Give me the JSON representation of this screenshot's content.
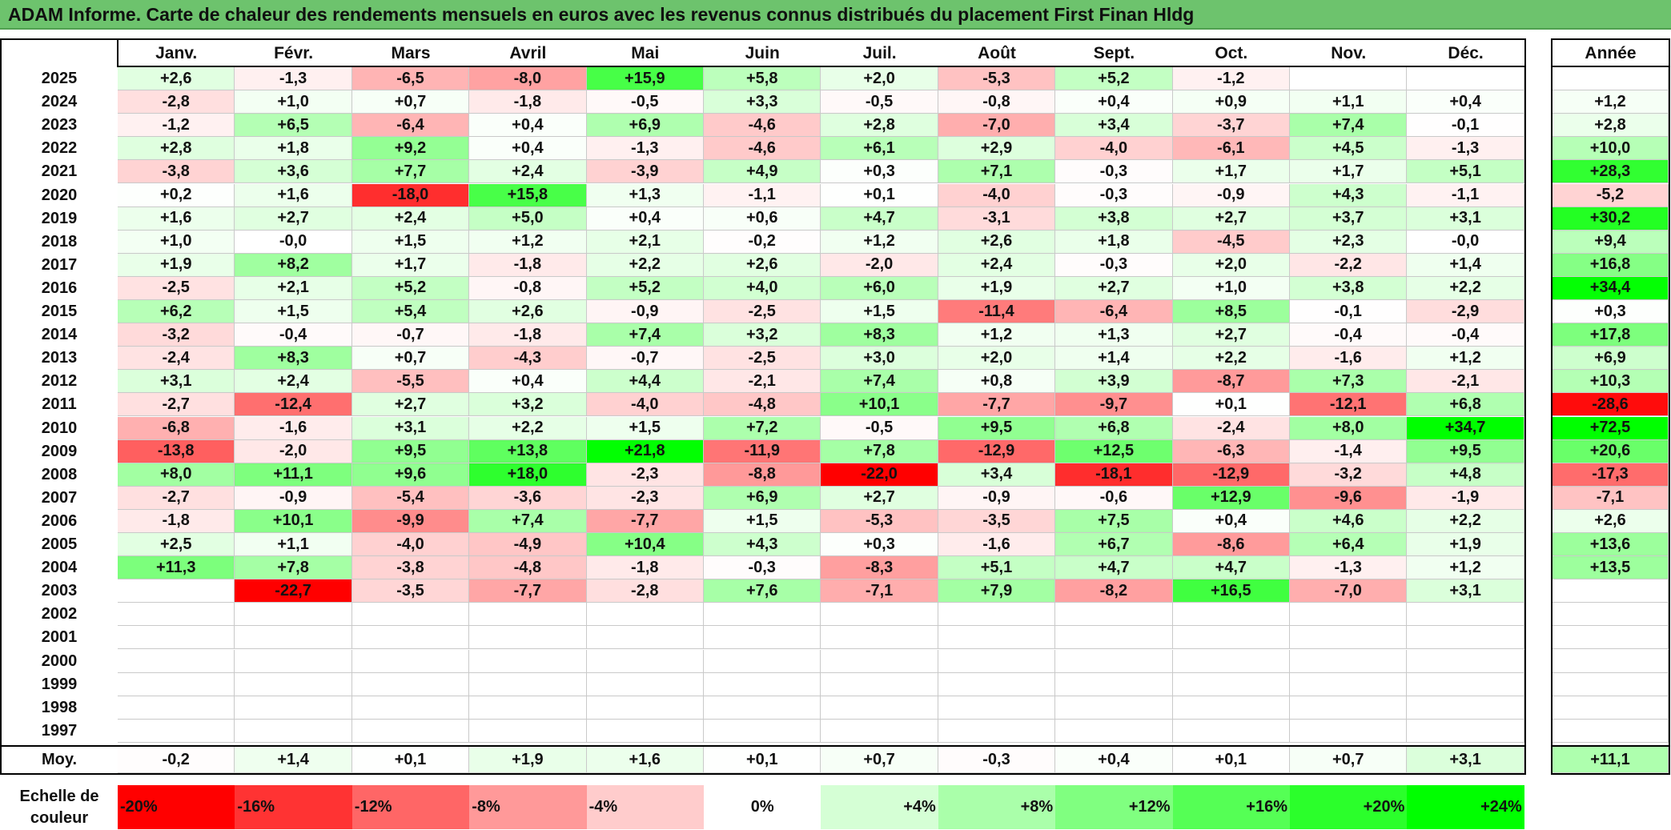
{
  "title": "ADAM Informe. Carte de chaleur des rendements mensuels en euros avec les revenus connus distribués du placement First Finan Hldg",
  "chart_data": {
    "type": "heatmap",
    "title": "ADAM Informe. Carte de chaleur des rendements mensuels en euros avec les revenus connus distribués du placement First Finan Hldg",
    "months": [
      "Janv.",
      "Févr.",
      "Mars",
      "Avril",
      "Mai",
      "Juin",
      "Juil.",
      "Août",
      "Sept.",
      "Oct.",
      "Nov.",
      "Déc."
    ],
    "year_header": "Année",
    "rows": [
      {
        "year": "2025",
        "values": [
          "+2,6",
          "-1,3",
          "-6,5",
          "-8,0",
          "+15,9",
          "+5,8",
          "+2,0",
          "-5,3",
          "+5,2",
          "-1,2",
          "",
          ""
        ],
        "annual": ""
      },
      {
        "year": "2024",
        "values": [
          "-2,8",
          "+1,0",
          "+0,7",
          "-1,8",
          "-0,5",
          "+3,3",
          "-0,5",
          "-0,8",
          "+0,4",
          "+0,9",
          "+1,1",
          "+0,4"
        ],
        "annual": "+1,2"
      },
      {
        "year": "2023",
        "values": [
          "-1,2",
          "+6,5",
          "-6,4",
          "+0,4",
          "+6,9",
          "-4,6",
          "+2,8",
          "-7,0",
          "+3,4",
          "-3,7",
          "+7,4",
          "-0,1"
        ],
        "annual": "+2,8"
      },
      {
        "year": "2022",
        "values": [
          "+2,8",
          "+1,8",
          "+9,2",
          "+0,4",
          "-1,3",
          "-4,6",
          "+6,1",
          "+2,9",
          "-4,0",
          "-6,1",
          "+4,5",
          "-1,3"
        ],
        "annual": "+10,0"
      },
      {
        "year": "2021",
        "values": [
          "-3,8",
          "+3,6",
          "+7,7",
          "+2,4",
          "-3,9",
          "+4,9",
          "+0,3",
          "+7,1",
          "-0,3",
          "+1,7",
          "+1,7",
          "+5,1"
        ],
        "annual": "+28,3"
      },
      {
        "year": "2020",
        "values": [
          "+0,2",
          "+1,6",
          "-18,0",
          "+15,8",
          "+1,3",
          "-1,1",
          "+0,1",
          "-4,0",
          "-0,3",
          "-0,9",
          "+4,3",
          "-1,1"
        ],
        "annual": "-5,2"
      },
      {
        "year": "2019",
        "values": [
          "+1,6",
          "+2,7",
          "+2,4",
          "+5,0",
          "+0,4",
          "+0,6",
          "+4,7",
          "-3,1",
          "+3,8",
          "+2,7",
          "+3,7",
          "+3,1"
        ],
        "annual": "+30,2"
      },
      {
        "year": "2018",
        "values": [
          "+1,0",
          "-0,0",
          "+1,5",
          "+1,2",
          "+2,1",
          "-0,2",
          "+1,2",
          "+2,6",
          "+1,8",
          "-4,5",
          "+2,3",
          "-0,0"
        ],
        "annual": "+9,4"
      },
      {
        "year": "2017",
        "values": [
          "+1,9",
          "+8,2",
          "+1,7",
          "-1,8",
          "+2,2",
          "+2,6",
          "-2,0",
          "+2,4",
          "-0,3",
          "+2,0",
          "-2,2",
          "+1,4"
        ],
        "annual": "+16,8"
      },
      {
        "year": "2016",
        "values": [
          "-2,5",
          "+2,1",
          "+5,2",
          "-0,8",
          "+5,2",
          "+4,0",
          "+6,0",
          "+1,9",
          "+2,7",
          "+1,0",
          "+3,8",
          "+2,2"
        ],
        "annual": "+34,4"
      },
      {
        "year": "2015",
        "values": [
          "+6,2",
          "+1,5",
          "+5,4",
          "+2,6",
          "-0,9",
          "-2,5",
          "+1,5",
          "-11,4",
          "-6,4",
          "+8,5",
          "-0,1",
          "-2,9"
        ],
        "annual": "+0,3"
      },
      {
        "year": "2014",
        "values": [
          "-3,2",
          "-0,4",
          "-0,7",
          "-1,8",
          "+7,4",
          "+3,2",
          "+8,3",
          "+1,2",
          "+1,3",
          "+2,7",
          "-0,4",
          "-0,4"
        ],
        "annual": "+17,8"
      },
      {
        "year": "2013",
        "values": [
          "-2,4",
          "+8,3",
          "+0,7",
          "-4,3",
          "-0,7",
          "-2,5",
          "+3,0",
          "+2,0",
          "+1,4",
          "+2,2",
          "-1,6",
          "+1,2"
        ],
        "annual": "+6,9"
      },
      {
        "year": "2012",
        "values": [
          "+3,1",
          "+2,4",
          "-5,5",
          "+0,4",
          "+4,4",
          "-2,1",
          "+7,4",
          "+0,8",
          "+3,9",
          "-8,7",
          "+7,3",
          "-2,1"
        ],
        "annual": "+10,3"
      },
      {
        "year": "2011",
        "values": [
          "-2,7",
          "-12,4",
          "+2,7",
          "+3,2",
          "-4,0",
          "-4,8",
          "+10,1",
          "-7,7",
          "-9,7",
          "+0,1",
          "-12,1",
          "+6,8"
        ],
        "annual": "-28,6"
      },
      {
        "year": "2010",
        "values": [
          "-6,8",
          "-1,6",
          "+3,1",
          "+2,2",
          "+1,5",
          "+7,2",
          "-0,5",
          "+9,5",
          "+6,8",
          "-2,4",
          "+8,0",
          "+34,7"
        ],
        "annual": "+72,5"
      },
      {
        "year": "2009",
        "values": [
          "-13,8",
          "-2,0",
          "+9,5",
          "+13,8",
          "+21,8",
          "-11,9",
          "+7,8",
          "-12,9",
          "+12,5",
          "-6,3",
          "-1,4",
          "+9,5"
        ],
        "annual": "+20,6"
      },
      {
        "year": "2008",
        "values": [
          "+8,0",
          "+11,1",
          "+9,6",
          "+18,0",
          "-2,3",
          "-8,8",
          "-22,0",
          "+3,4",
          "-18,1",
          "-12,9",
          "-3,2",
          "+4,8"
        ],
        "annual": "-17,3"
      },
      {
        "year": "2007",
        "values": [
          "-2,7",
          "-0,9",
          "-5,4",
          "-3,6",
          "-2,3",
          "+6,9",
          "+2,7",
          "-0,9",
          "-0,6",
          "+12,9",
          "-9,6",
          "-1,9"
        ],
        "annual": "-7,1"
      },
      {
        "year": "2006",
        "values": [
          "-1,8",
          "+10,1",
          "-9,9",
          "+7,4",
          "-7,7",
          "+1,5",
          "-5,3",
          "-3,5",
          "+7,5",
          "+0,4",
          "+4,6",
          "+2,2"
        ],
        "annual": "+2,6"
      },
      {
        "year": "2005",
        "values": [
          "+2,5",
          "+1,1",
          "-4,0",
          "-4,9",
          "+10,4",
          "+4,3",
          "+0,3",
          "-1,6",
          "+6,7",
          "-8,6",
          "+6,4",
          "+1,9"
        ],
        "annual": "+13,6"
      },
      {
        "year": "2004",
        "values": [
          "+11,3",
          "+7,8",
          "-3,8",
          "-4,8",
          "-1,8",
          "-0,3",
          "-8,3",
          "+5,1",
          "+4,7",
          "+4,7",
          "-1,3",
          "+1,2"
        ],
        "annual": "+13,5"
      },
      {
        "year": "2003",
        "values": [
          "",
          "-22,7",
          "-3,5",
          "-7,7",
          "-2,8",
          "+7,6",
          "-7,1",
          "+7,9",
          "-8,2",
          "+16,5",
          "-7,0",
          "+3,1"
        ],
        "annual": ""
      },
      {
        "year": "2002",
        "values": [
          "",
          "",
          "",
          "",
          "",
          "",
          "",
          "",
          "",
          "",
          "",
          ""
        ],
        "annual": ""
      },
      {
        "year": "2001",
        "values": [
          "",
          "",
          "",
          "",
          "",
          "",
          "",
          "",
          "",
          "",
          "",
          ""
        ],
        "annual": ""
      },
      {
        "year": "2000",
        "values": [
          "",
          "",
          "",
          "",
          "",
          "",
          "",
          "",
          "",
          "",
          "",
          ""
        ],
        "annual": ""
      },
      {
        "year": "1999",
        "values": [
          "",
          "",
          "",
          "",
          "",
          "",
          "",
          "",
          "",
          "",
          "",
          ""
        ],
        "annual": ""
      },
      {
        "year": "1998",
        "values": [
          "",
          "",
          "",
          "",
          "",
          "",
          "",
          "",
          "",
          "",
          "",
          ""
        ],
        "annual": ""
      },
      {
        "year": "1997",
        "values": [
          "",
          "",
          "",
          "",
          "",
          "",
          "",
          "",
          "",
          "",
          "",
          ""
        ],
        "annual": ""
      }
    ],
    "average_label": "Moy.",
    "average_values": [
      "-0,2",
      "+1,4",
      "+0,1",
      "+1,9",
      "+1,6",
      "+0,1",
      "+0,7",
      "-0,3",
      "+0,4",
      "+0,1",
      "+0,7",
      "+3,1"
    ],
    "average_annual": "+11,1",
    "color_scale": {
      "label": "Echelle de couleur",
      "stops": [
        "-20%",
        "-16%",
        "-12%",
        "-8%",
        "-4%",
        "0%",
        "+4%",
        "+8%",
        "+12%",
        "+16%",
        "+20%",
        "+24%"
      ],
      "stop_values": [
        -20,
        -16,
        -12,
        -8,
        -4,
        0,
        4,
        8,
        12,
        16,
        20,
        24
      ],
      "negative_color": "#ff0000",
      "positive_color": "#00ff00",
      "neutral_color": "#ffffff"
    }
  }
}
